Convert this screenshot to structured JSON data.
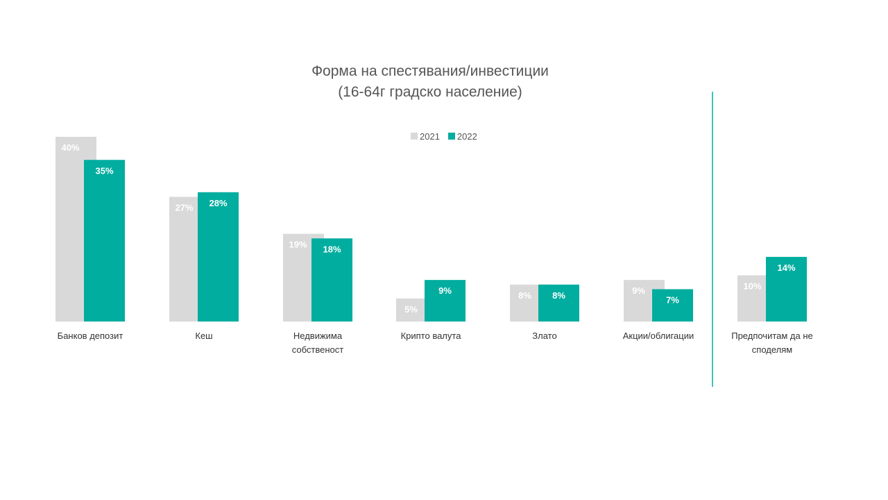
{
  "chart_data": {
    "type": "bar",
    "title_lines": [
      "Форма на спестявания/инвестиции",
      "(16-64г градско население)"
    ],
    "categories": [
      [
        "Банков депозит"
      ],
      [
        "Кеш"
      ],
      [
        "Недвижима",
        "собственост"
      ],
      [
        "Крипто валута"
      ],
      [
        "Злато"
      ],
      [
        "Акции/облигации"
      ],
      [
        "Предпочитам да не",
        "споделям"
      ]
    ],
    "series": [
      {
        "name": "2021",
        "color": "#d9d9d9",
        "label_color": "#ffffff",
        "values": [
          40,
          27,
          19,
          5,
          8,
          9,
          10
        ],
        "labels": [
          "40%",
          "27%",
          "19%",
          "5%",
          "8%",
          "9%",
          "10%"
        ]
      },
      {
        "name": "2022",
        "color": "#00ad9f",
        "label_color": "#ffffff",
        "values": [
          35,
          28,
          18,
          9,
          8,
          7,
          14
        ],
        "labels": [
          "35%",
          "28%",
          "18%",
          "9%",
          "8%",
          "7%",
          "14%"
        ]
      }
    ],
    "ylim": [
      0,
      40
    ],
    "unit": "%",
    "legend_position": "top-center",
    "separator_before_category": 6,
    "separator_color": "#00ad9f",
    "grid": false
  }
}
